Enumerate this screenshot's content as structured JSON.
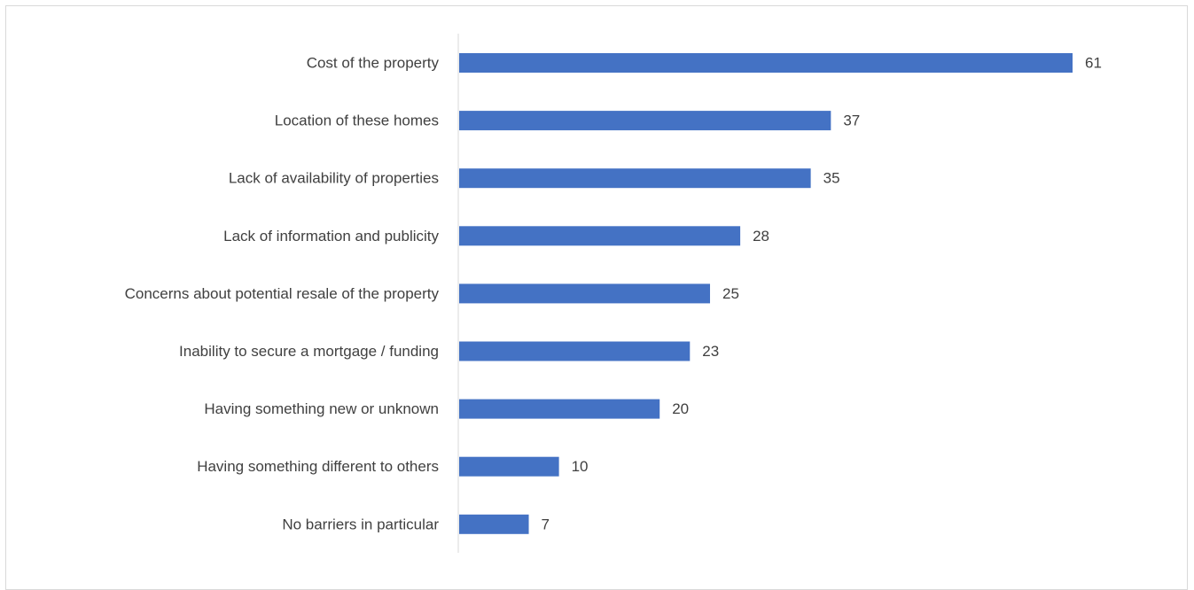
{
  "chart_data": {
    "type": "bar",
    "orientation": "horizontal",
    "categories": [
      "Cost of the property",
      "Location of these homes",
      "Lack of availability of properties",
      "Lack of information and publicity",
      "Concerns about potential resale of the property",
      "Inability to secure a mortgage / funding",
      "Having something new or unknown",
      "Having something different to others",
      "No barriers in particular"
    ],
    "values": [
      61,
      37,
      35,
      28,
      25,
      23,
      20,
      10,
      7
    ],
    "title": "",
    "xlabel": "",
    "ylabel": "",
    "xlim": [
      0,
      61
    ],
    "grid": false,
    "legend": "none",
    "bar_color": "#4472C4",
    "axis_color": "#d9d9d9",
    "label_color": "#404040"
  }
}
